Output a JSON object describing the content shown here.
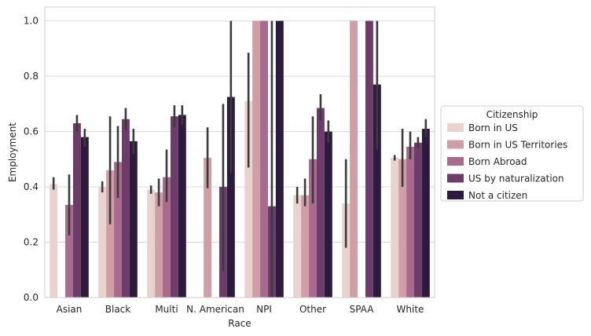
{
  "chart_data": {
    "type": "bar",
    "xlabel": "Race",
    "ylabel": "Employment",
    "ylim": [
      0,
      1.05
    ],
    "yticks": [
      "0.0",
      "0.2",
      "0.4",
      "0.6",
      "0.8",
      "1.0"
    ],
    "grid": true,
    "legend_position": "right",
    "legend_title": "Citizenship",
    "categories": [
      "Asian",
      "Black",
      "Multi",
      "N. American",
      "NPI",
      "Other",
      "SPAA",
      "White"
    ],
    "series": [
      {
        "name": "Born in US",
        "color": "#ead3cf",
        "values": [
          0.41,
          0.4,
          0.39,
          null,
          0.71,
          0.37,
          0.34,
          0.505
        ],
        "ci": [
          [
            0.39,
            0.435
          ],
          [
            0.38,
            0.42
          ],
          [
            0.375,
            0.405
          ],
          null,
          [
            0.47,
            0.885
          ],
          [
            0.34,
            0.4
          ],
          [
            0.18,
            0.5
          ],
          [
            0.495,
            0.515
          ]
        ]
      },
      {
        "name": "Born in US Territories",
        "color": "#cf9ea7",
        "values": [
          null,
          0.46,
          0.38,
          0.505,
          1.0,
          0.37,
          1.0,
          0.5
        ],
        "ci": [
          null,
          [
            0.265,
            0.655
          ],
          [
            0.33,
            0.43
          ],
          [
            0.395,
            0.615
          ],
          null,
          [
            0.33,
            0.43
          ],
          null,
          [
            0.4,
            0.61
          ]
        ]
      },
      {
        "name": "Born Abroad",
        "color": "#a86b8f",
        "values": [
          0.335,
          0.49,
          0.435,
          null,
          1.0,
          0.5,
          null,
          0.545
        ],
        "ci": [
          [
            0.225,
            0.445
          ],
          [
            0.36,
            0.62
          ],
          [
            0.345,
            0.535
          ],
          null,
          null,
          [
            0.34,
            0.655
          ],
          null,
          [
            0.5,
            0.6
          ]
        ]
      },
      {
        "name": "US by naturalization",
        "color": "#6e3c6b",
        "values": [
          0.63,
          0.645,
          0.655,
          0.4,
          0.33,
          0.685,
          1.0,
          0.56
        ],
        "ci": [
          [
            0.6,
            0.66
          ],
          [
            0.605,
            0.685
          ],
          [
            0.615,
            0.695
          ],
          [
            0.095,
            0.7
          ],
          [
            0.0,
            1.0
          ],
          [
            0.64,
            0.735
          ],
          null,
          [
            0.54,
            0.58
          ]
        ]
      },
      {
        "name": "Not a citizen",
        "color": "#2d1b3d",
        "values": [
          0.58,
          0.565,
          0.66,
          0.725,
          1.0,
          0.6,
          0.77,
          0.61
        ],
        "ci": [
          [
            0.545,
            0.61
          ],
          [
            0.52,
            0.61
          ],
          [
            0.625,
            0.695
          ],
          [
            0.45,
            1.0
          ],
          null,
          [
            0.56,
            0.64
          ],
          [
            0.535,
            1.0
          ],
          [
            0.58,
            0.645
          ]
        ]
      }
    ]
  }
}
